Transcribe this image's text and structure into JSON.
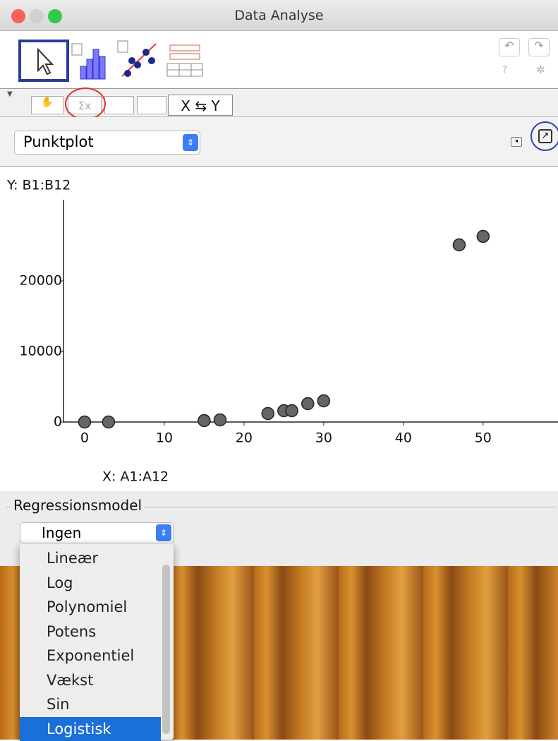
{
  "window": {
    "title": "Data Analyse"
  },
  "toolbar": {
    "sum_button": "Σx",
    "swap_button": "X ⇆ Y"
  },
  "plot_selector": "Punktplot",
  "chart_data": {
    "type": "scatter",
    "y_label": "Y: B1:B12",
    "x_label": "X: A1:A12",
    "x": [
      0,
      3,
      15,
      17,
      23,
      25,
      26,
      28,
      30,
      47,
      50
    ],
    "values": [
      0,
      0,
      200,
      300,
      1200,
      1600,
      1600,
      2600,
      3000,
      25100,
      26300
    ],
    "color": "#666666",
    "xlim": [
      -2.65,
      59.4
    ],
    "ylim": [
      0,
      31000
    ],
    "xticks": [
      0,
      10,
      20,
      30,
      40,
      50
    ],
    "yticks": [
      0,
      10000,
      20000
    ],
    "grid": false
  },
  "regression": {
    "label": "Regressionsmodel",
    "selected": "Ingen",
    "options": [
      "Lineær",
      "Log",
      "Polynomiel",
      "Potens",
      "Exponentiel",
      "Vækst",
      "Sin",
      "Logistisk"
    ],
    "highlighted": 7
  }
}
